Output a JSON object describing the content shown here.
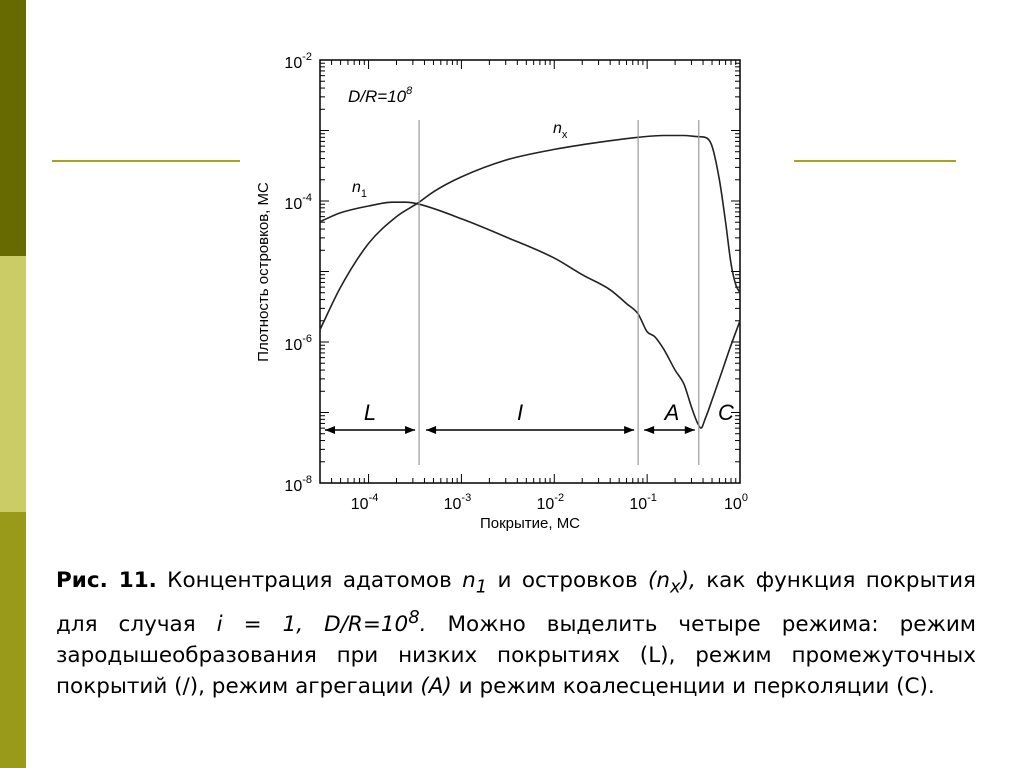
{
  "colors": {
    "sidebar_top": "#666a00",
    "sidebar_mid": "#cccc66",
    "sidebar_bottom": "#999a1a",
    "accent_line": "#a8a31c",
    "curve": "#222222",
    "divider": "#9a9a9a"
  },
  "chart_data": {
    "type": "line",
    "ylabel": "Плотность островков, МС",
    "xlabel": "Покрытие, МС",
    "x_scale": "log",
    "y_scale": "log",
    "xlim": [
      3e-05,
      1
    ],
    "ylim": [
      1e-08,
      0.01
    ],
    "x_ticks": [
      {
        "base": "10",
        "exp": "-4",
        "value": 0.0001
      },
      {
        "base": "10",
        "exp": "-3",
        "value": 0.001
      },
      {
        "base": "10",
        "exp": "-2",
        "value": 0.01
      },
      {
        "base": "10",
        "exp": "-1",
        "value": 0.1
      },
      {
        "base": "10",
        "exp": "0",
        "value": 1
      }
    ],
    "y_ticks": [
      {
        "base": "10",
        "exp": "-2",
        "value": 0.01
      },
      {
        "base": "10",
        "exp": "-4",
        "value": 0.0001
      },
      {
        "base": "10",
        "exp": "-6",
        "value": 1e-06
      },
      {
        "base": "10",
        "exp": "-8",
        "value": 1e-08
      }
    ],
    "condition": {
      "base": "D/R=10",
      "exp": "8"
    },
    "series": [
      {
        "name": "n1",
        "label_main": "n",
        "label_sub": "1",
        "x": [
          3e-05,
          5e-05,
          0.0001,
          0.00018,
          0.00025,
          0.00035,
          0.001,
          0.003,
          0.01,
          0.02,
          0.04,
          0.06,
          0.08,
          0.1,
          0.12,
          0.15,
          0.2,
          0.25,
          0.3,
          0.35,
          0.38,
          0.42,
          0.5,
          0.6,
          0.8,
          1
        ],
        "y": [
          5.1e-05,
          6.8e-05,
          8.5e-05,
          9.6e-05,
          9.6e-05,
          9e-05,
          5.6e-05,
          3.1e-05,
          1.55e-05,
          9e-06,
          5.5e-06,
          3.5e-06,
          2.5e-06,
          1.4e-06,
          1.2e-06,
          8e-07,
          4e-07,
          2.5e-07,
          1.2e-07,
          7e-08,
          6e-08,
          8e-08,
          1.5e-07,
          3e-07,
          9e-07,
          2e-06
        ]
      },
      {
        "name": "nx",
        "label_main": "n",
        "label_sub": "x",
        "x": [
          3e-05,
          5e-05,
          0.0001,
          0.0002,
          0.00035,
          0.0005,
          0.001,
          0.003,
          0.01,
          0.03,
          0.08,
          0.15,
          0.25,
          0.35,
          0.42,
          0.5,
          0.6,
          0.7,
          0.8,
          0.9,
          1
        ],
        "y": [
          1.5e-06,
          6e-06,
          2.5e-05,
          6e-05,
          9.6e-05,
          0.000135,
          0.00022,
          0.00038,
          0.00054,
          0.00068,
          0.0008,
          0.00085,
          0.00085,
          0.00082,
          0.0008,
          0.0006,
          0.0002,
          5e-05,
          1.3e-05,
          6.5e-06,
          5e-06
        ]
      }
    ],
    "regions": [
      {
        "label": "L",
        "from": 3e-05,
        "to": 0.00035
      },
      {
        "label": "I",
        "from": 0.00035,
        "to": 0.08
      },
      {
        "label": "A",
        "from": 0.08,
        "to": 0.36
      },
      {
        "label": "C",
        "from": 0.36,
        "to": 1
      }
    ],
    "dividers": [
      0.00035,
      0.08,
      0.36
    ]
  },
  "caption": {
    "fig_label": "Рис. 11.",
    "t1": " Концентрация адатомов ",
    "n": "n",
    "sub1": "1",
    "t2": " и островков ",
    "nx_open": "(n",
    "subx": "x",
    "nx_close": "),",
    "t3": " как функция покрытия для случая ",
    "cond": "i = 1, D/R=10",
    "cond_exp": "8",
    "cond_dot": ".",
    "t4": " Можно выделить четыре режима: режим зародышеобразования при низких покрытиях (L), режим промежуточных покрытий (/), режим агрегации ",
    "a_label": "(A)",
    "t5": " и режим коалесценции и перколяции (С)."
  }
}
